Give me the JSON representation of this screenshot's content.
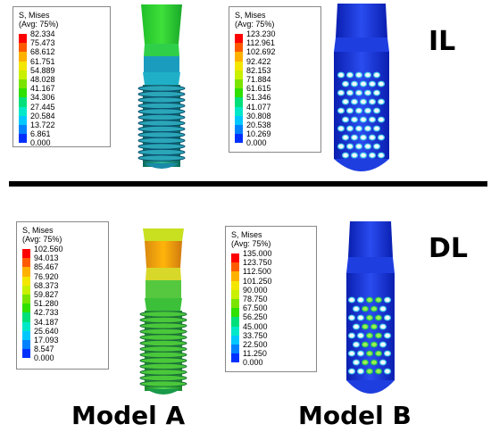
{
  "legend_title_line1": "S, Mises",
  "legend_title_line2": "(Avg: 75%)",
  "colormap": [
    "#ff0000",
    "#ff5a00",
    "#ffb100",
    "#f3e600",
    "#c8f000",
    "#7ae400",
    "#2fe000",
    "#00e07a",
    "#00e8c8",
    "#00c8ff",
    "#0082ff",
    "#0030ff",
    "#0000d2"
  ],
  "legends": {
    "a_il": [
      "82.334",
      "75.473",
      "68.612",
      "61.751",
      "54.889",
      "48.028",
      "41.167",
      "34.306",
      "27.445",
      "20.584",
      "13.722",
      "6.861",
      "0.000"
    ],
    "b_il": [
      "123.230",
      "112.961",
      "102.692",
      "92.422",
      "82.153",
      "71.884",
      "61.615",
      "51.346",
      "41.077",
      "30.808",
      "20.538",
      "10.269",
      "0.000"
    ],
    "a_dl": [
      "102.560",
      "94.013",
      "85.467",
      "76.920",
      "68.373",
      "59.827",
      "51.280",
      "42.733",
      "34.187",
      "25.640",
      "17.093",
      "8.547",
      "0.000"
    ],
    "b_dl": [
      "135.000",
      "123.750",
      "112.500",
      "101.250",
      "90.000",
      "78.750",
      "67.500",
      "56.250",
      "45.000",
      "33.750",
      "22.500",
      "11.250",
      "0.000"
    ]
  },
  "row_labels": {
    "il": "IL",
    "dl": "DL"
  },
  "model_labels": {
    "a": "Model A",
    "b": "Model B"
  }
}
